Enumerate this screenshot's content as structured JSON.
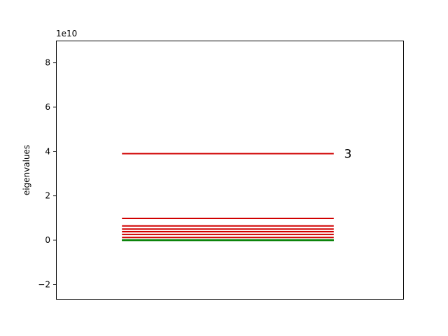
{
  "chart_data": {
    "type": "line",
    "title": "",
    "xlabel": "",
    "ylabel": "eigenvalues",
    "offset_label": "1e10",
    "x_ticks": false,
    "ylim": [
      -2.65,
      9.0
    ],
    "xlim": [
      0,
      1
    ],
    "y_ticks": [
      {
        "value": -2,
        "label": "−2"
      },
      {
        "value": 0,
        "label": "0"
      },
      {
        "value": 2,
        "label": "2"
      },
      {
        "value": 4,
        "label": "4"
      },
      {
        "value": 6,
        "label": "6"
      },
      {
        "value": 8,
        "label": "8"
      }
    ],
    "grid": false,
    "colors": {
      "highlight": "#d00000",
      "other": "#007f00",
      "axes": "#000000"
    },
    "series": [
      {
        "color": "#d00000",
        "x": [
          0.19,
          0.8
        ],
        "levels": [
          3.9,
          0.98,
          0.64,
          0.5,
          0.38,
          0.26,
          0.12
        ]
      },
      {
        "color": "#007f00",
        "x": [
          0.19,
          0.8
        ],
        "levels": [
          0.01,
          0.0,
          -0.01
        ]
      }
    ],
    "annotations": [
      {
        "text": "3",
        "x": 0.83,
        "y": 3.9
      }
    ]
  }
}
